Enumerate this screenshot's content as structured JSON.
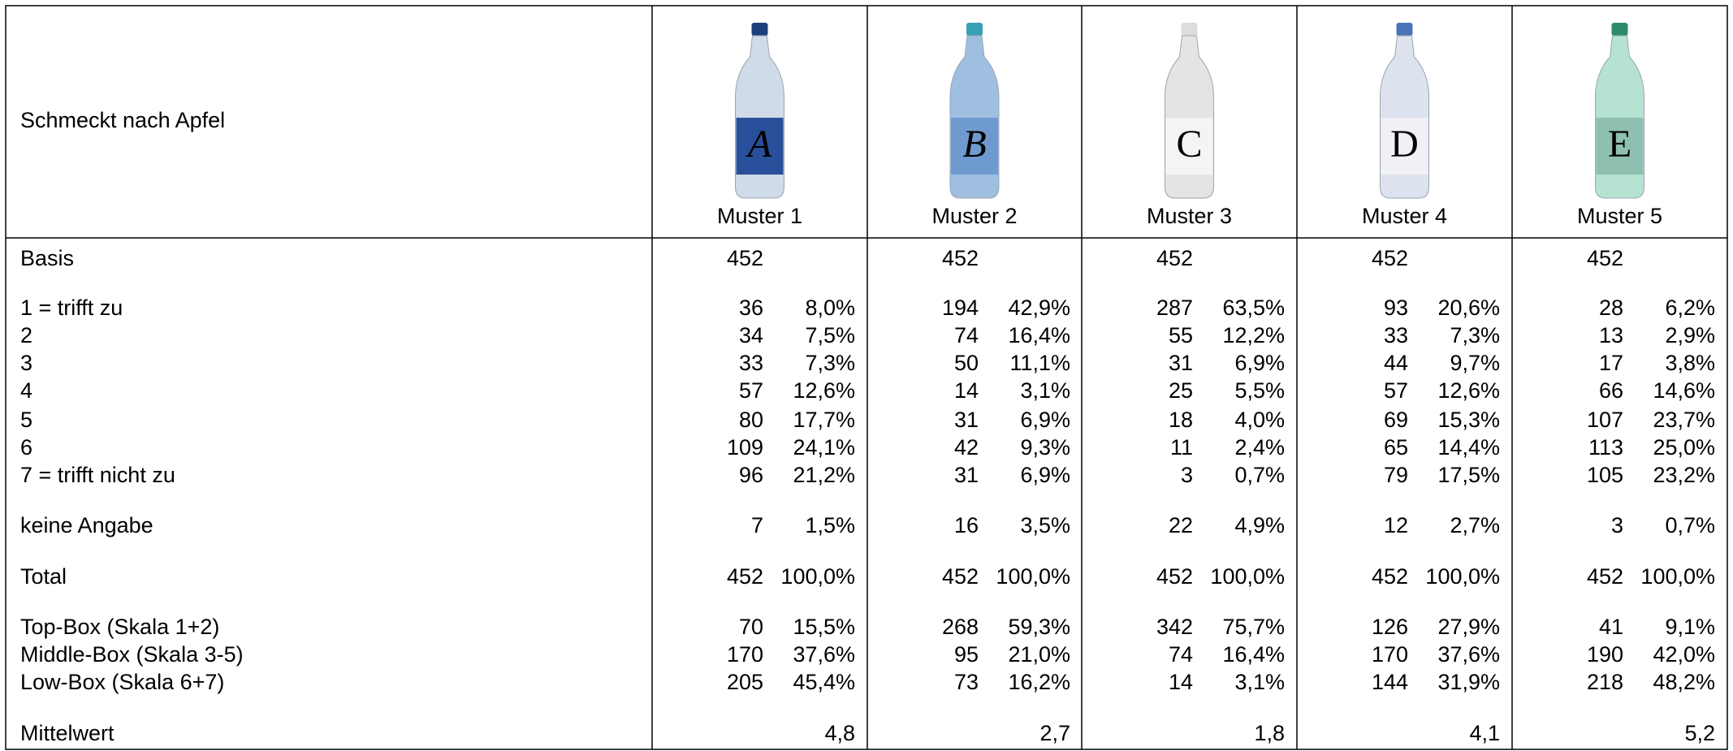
{
  "header": {
    "title": "Schmeckt nach Apfel",
    "samples": [
      {
        "letter": "A",
        "name": "Muster 1"
      },
      {
        "letter": "B",
        "name": "Muster 2"
      },
      {
        "letter": "C",
        "name": "Muster 3"
      },
      {
        "letter": "D",
        "name": "Muster 4"
      },
      {
        "letter": "E",
        "name": "Muster 5"
      }
    ]
  },
  "table": {
    "rows": [
      {
        "label": "Basis",
        "cells": [
          [
            "452"
          ],
          [
            "452"
          ],
          [
            "452"
          ],
          [
            "452"
          ],
          [
            "452"
          ]
        ]
      },
      {
        "label": "1 = trifft zu",
        "cells": [
          [
            "36",
            "8,0%"
          ],
          [
            "194",
            "42,9%"
          ],
          [
            "287",
            "63,5%"
          ],
          [
            "93",
            "20,6%"
          ],
          [
            "28",
            "6,2%"
          ]
        ]
      },
      {
        "label": "2",
        "cells": [
          [
            "34",
            "7,5%"
          ],
          [
            "74",
            "16,4%"
          ],
          [
            "55",
            "12,2%"
          ],
          [
            "33",
            "7,3%"
          ],
          [
            "13",
            "2,9%"
          ]
        ]
      },
      {
        "label": "3",
        "cells": [
          [
            "33",
            "7,3%"
          ],
          [
            "50",
            "11,1%"
          ],
          [
            "31",
            "6,9%"
          ],
          [
            "44",
            "9,7%"
          ],
          [
            "17",
            "3,8%"
          ]
        ]
      },
      {
        "label": "4",
        "cells": [
          [
            "57",
            "12,6%"
          ],
          [
            "14",
            "3,1%"
          ],
          [
            "25",
            "5,5%"
          ],
          [
            "57",
            "12,6%"
          ],
          [
            "66",
            "14,6%"
          ]
        ]
      },
      {
        "label": "5",
        "cells": [
          [
            "80",
            "17,7%"
          ],
          [
            "31",
            "6,9%"
          ],
          [
            "18",
            "4,0%"
          ],
          [
            "69",
            "15,3%"
          ],
          [
            "107",
            "23,7%"
          ]
        ]
      },
      {
        "label": "6",
        "cells": [
          [
            "109",
            "24,1%"
          ],
          [
            "42",
            "9,3%"
          ],
          [
            "11",
            "2,4%"
          ],
          [
            "65",
            "14,4%"
          ],
          [
            "113",
            "25,0%"
          ]
        ]
      },
      {
        "label": "7 = trifft nicht zu",
        "cells": [
          [
            "96",
            "21,2%"
          ],
          [
            "31",
            "6,9%"
          ],
          [
            "3",
            "0,7%"
          ],
          [
            "79",
            "17,5%"
          ],
          [
            "105",
            "23,2%"
          ]
        ]
      },
      {
        "label": "keine Angabe",
        "cells": [
          [
            "7",
            "1,5%"
          ],
          [
            "16",
            "3,5%"
          ],
          [
            "22",
            "4,9%"
          ],
          [
            "12",
            "2,7%"
          ],
          [
            "3",
            "0,7%"
          ]
        ]
      },
      {
        "label": "Total",
        "cells": [
          [
            "452",
            "100,0%"
          ],
          [
            "452",
            "100,0%"
          ],
          [
            "452",
            "100,0%"
          ],
          [
            "452",
            "100,0%"
          ],
          [
            "452",
            "100,0%"
          ]
        ]
      },
      {
        "label": "Top-Box (Skala 1+2)",
        "cells": [
          [
            "70",
            "15,5%"
          ],
          [
            "268",
            "59,3%"
          ],
          [
            "342",
            "75,7%"
          ],
          [
            "126",
            "27,9%"
          ],
          [
            "41",
            "9,1%"
          ]
        ]
      },
      {
        "label": "Middle-Box (Skala 3-5)",
        "cells": [
          [
            "170",
            "37,6%"
          ],
          [
            "95",
            "21,0%"
          ],
          [
            "74",
            "16,4%"
          ],
          [
            "170",
            "37,6%"
          ],
          [
            "190",
            "42,0%"
          ]
        ]
      },
      {
        "label": "Low-Box (Skala 6+7)",
        "cells": [
          [
            "205",
            "45,4%"
          ],
          [
            "73",
            "16,2%"
          ],
          [
            "14",
            "3,1%"
          ],
          [
            "144",
            "31,9%"
          ],
          [
            "218",
            "48,2%"
          ]
        ]
      },
      {
        "label": "Mittelwert",
        "cells": [
          [
            null,
            "4,8"
          ],
          [
            null,
            "2,7"
          ],
          [
            null,
            "1,8"
          ],
          [
            null,
            "4,1"
          ],
          [
            null,
            "5,2"
          ]
        ]
      }
    ]
  }
}
